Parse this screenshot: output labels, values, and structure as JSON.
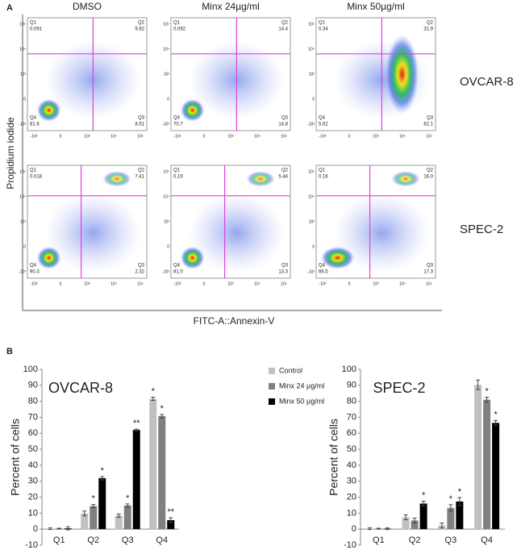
{
  "panel_a": {
    "label": "A",
    "columns": [
      "DMSO",
      "Minx 24µg/ml",
      "Minx 50µg/ml"
    ],
    "quadrant_names": [
      "Q1",
      "Q2",
      "Q3",
      "Q4"
    ],
    "x_ticks": [
      "-10³",
      "0",
      "10³",
      "10⁴",
      "10⁵"
    ],
    "y_ticks": [
      "10⁵",
      "10⁴",
      "10³",
      "0",
      "-10³"
    ],
    "y_label": "Propidium iodide",
    "x_label": "FITC-A::Annexin-V",
    "rows": [
      {
        "name": "OVCAR-8",
        "plots": [
          [
            "0.091",
            "9.82",
            "8.51",
            "81.6"
          ],
          [
            "0.092",
            "14.4",
            "14.8",
            "70.7"
          ],
          [
            "0.34",
            "31.9",
            "62.1",
            "5.62"
          ]
        ]
      },
      {
        "name": "SPEC-2",
        "plots": [
          [
            "0.018",
            "7.41",
            "2.32",
            "90.3"
          ],
          [
            "0.19",
            "5.44",
            "13.3",
            "81.0"
          ],
          [
            "0.16",
            "16.0",
            "17.3",
            "66.5"
          ]
        ]
      }
    ]
  },
  "panel_b": {
    "label": "B"
  },
  "chart_data": [
    {
      "type": "bar",
      "title": "OVCAR-8",
      "y_label": "Percent of cells",
      "categories": [
        "Q1",
        "Q2",
        "Q3",
        "Q4"
      ],
      "ylim": [
        -10,
        100
      ],
      "yticks": [
        -10,
        0,
        10,
        20,
        30,
        40,
        50,
        60,
        70,
        80,
        90,
        100
      ],
      "legend": "right",
      "series": [
        {
          "name": "Control",
          "color": "#c0c0c0",
          "values": [
            0.3,
            9.8,
            8.5,
            81.6
          ],
          "errors": [
            0.5,
            1.5,
            1,
            1
          ],
          "annotations": [
            null,
            null,
            null,
            "*"
          ]
        },
        {
          "name": "Minx 24 µg/ml",
          "color": "#808080",
          "values": [
            0.3,
            14.4,
            14.8,
            70.7
          ],
          "errors": [
            0.3,
            1,
            1,
            1
          ],
          "annotations": [
            null,
            "*",
            "*",
            "*"
          ]
        },
        {
          "name": "Minx 50 µg/ml",
          "color": "#000000",
          "values": [
            0.5,
            31.9,
            62.1,
            5.6
          ],
          "errors": [
            1,
            1,
            0.5,
            1.5
          ],
          "annotations": [
            null,
            "*",
            "**",
            "**"
          ]
        }
      ]
    },
    {
      "type": "bar",
      "title": "SPEC-2",
      "y_label": "Percent of cells",
      "categories": [
        "Q1",
        "Q2",
        "Q3",
        "Q4"
      ],
      "ylim": [
        -10,
        100
      ],
      "yticks": [
        -10,
        0,
        10,
        20,
        30,
        40,
        50,
        60,
        70,
        80,
        90,
        100
      ],
      "series": [
        {
          "name": "Control",
          "color": "#c0c0c0",
          "values": [
            0.3,
            7.4,
            2.3,
            90.3
          ],
          "errors": [
            0.5,
            1.5,
            1.5,
            3
          ],
          "annotations": [
            null,
            null,
            null,
            null
          ]
        },
        {
          "name": "Minx 24 µg/ml",
          "color": "#808080",
          "values": [
            0.3,
            5.4,
            13.3,
            81.0
          ],
          "errors": [
            0.3,
            1.5,
            2,
            1.5
          ],
          "annotations": [
            null,
            null,
            "*",
            "*"
          ]
        },
        {
          "name": "Minx 50 µg/ml",
          "color": "#000000",
          "values": [
            0.3,
            16.0,
            17.3,
            66.5
          ],
          "errors": [
            0.5,
            1.5,
            2.5,
            1.5
          ],
          "annotations": [
            null,
            "*",
            "*",
            "*"
          ]
        }
      ]
    }
  ]
}
